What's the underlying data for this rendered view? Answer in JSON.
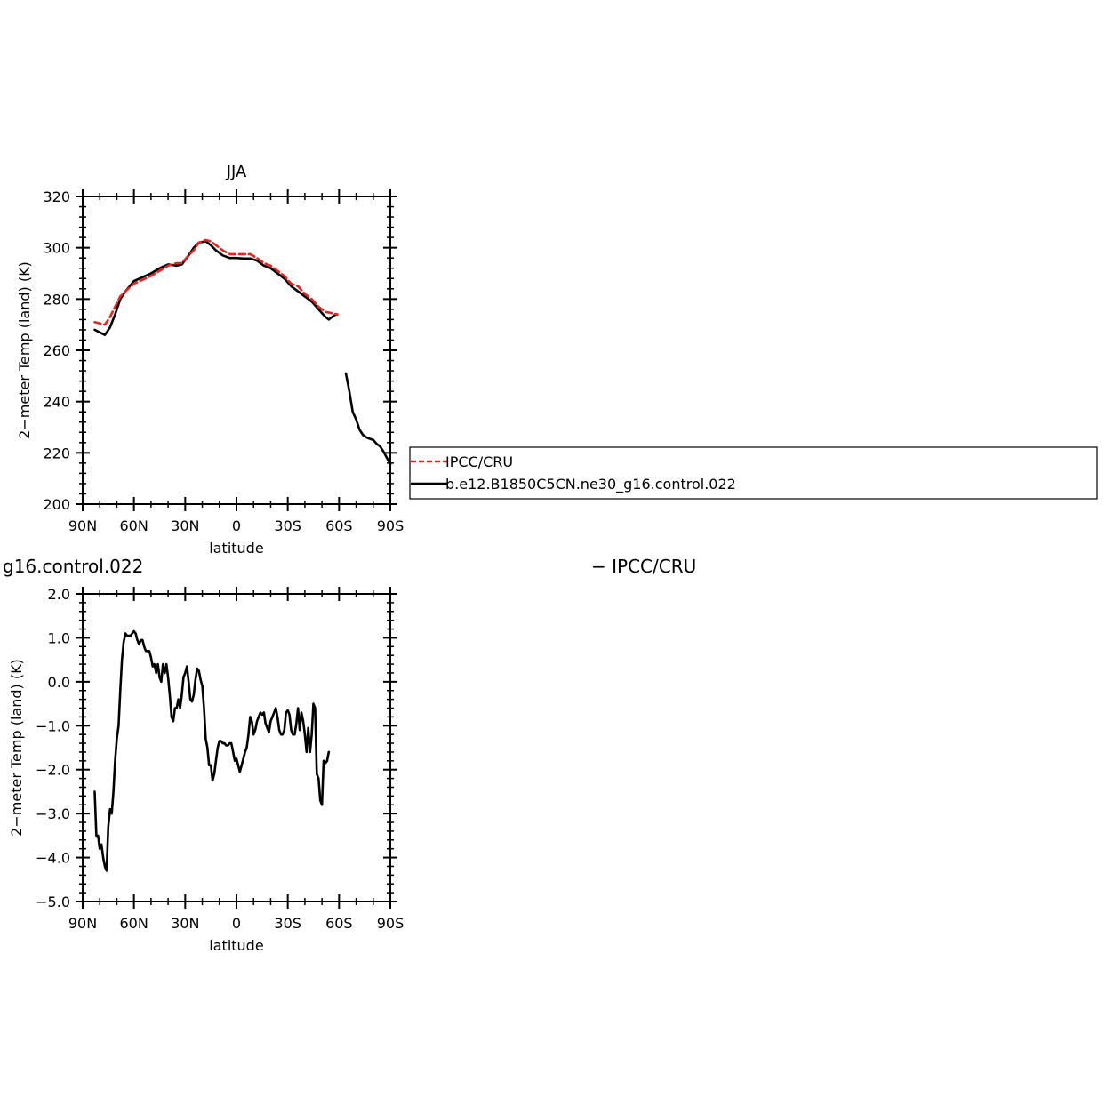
{
  "chart_data": [
    {
      "type": "line",
      "title": "JJA",
      "xlabel": "latitude",
      "ylabel": "2−meter Temp (land) (K)",
      "xlim": [
        90,
        -90
      ],
      "ylim": [
        200,
        320
      ],
      "x_tick_values": [
        90,
        60,
        30,
        0,
        -30,
        -60,
        -90
      ],
      "x_tick_labels": [
        "90N",
        "60N",
        "30N",
        "0",
        "30S",
        "60S",
        "90S"
      ],
      "y_tick_values": [
        200,
        220,
        240,
        260,
        280,
        300,
        320
      ],
      "y_tick_labels": [
        "200",
        "220",
        "240",
        "260",
        "280",
        "300",
        "320"
      ],
      "grid": false,
      "legend": {
        "placement": "right",
        "entries": [
          "IPCC/CRU",
          "b.e12.B1850C5CN.ne30_g16.control.022"
        ]
      },
      "series": [
        {
          "name": "IPCC/CRU",
          "color": "#e8231e",
          "dash": "dashed",
          "segments": [
            [
              [
                83,
                271
              ],
              [
                80,
                270.5
              ],
              [
                77,
                270
              ],
              [
                74,
                273
              ],
              [
                71,
                277
              ],
              [
                68,
                281
              ],
              [
                65,
                283
              ],
              [
                60,
                286
              ],
              [
                55,
                287.5
              ],
              [
                50,
                289
              ],
              [
                45,
                291
              ],
              [
                40,
                293
              ],
              [
                35,
                294
              ],
              [
                32,
                294
              ],
              [
                28,
                297
              ],
              [
                25,
                299
              ],
              [
                22,
                302
              ],
              [
                18,
                303
              ],
              [
                15,
                302.5
              ],
              [
                12,
                301
              ],
              [
                8,
                299
              ],
              [
                4,
                297.5
              ],
              [
                0,
                297.5
              ],
              [
                -4,
                297.5
              ],
              [
                -8,
                297.5
              ],
              [
                -12,
                296
              ],
              [
                -16,
                294
              ],
              [
                -20,
                293
              ],
              [
                -24,
                291
              ],
              [
                -28,
                289
              ],
              [
                -32,
                286
              ],
              [
                -36,
                285
              ],
              [
                -40,
                282
              ],
              [
                -44,
                280
              ],
              [
                -48,
                277
              ],
              [
                -52,
                275
              ],
              [
                -56,
                274.5
              ],
              [
                -59,
                274
              ]
            ]
          ]
        },
        {
          "name": "b.e12.B1850C5CN.ne30_g16.control.022",
          "color": "#000000",
          "dash": "solid",
          "segments": [
            [
              [
                83,
                268
              ],
              [
                80,
                267
              ],
              [
                77,
                266
              ],
              [
                74,
                269
              ],
              [
                71,
                274
              ],
              [
                68,
                280
              ],
              [
                65,
                283
              ],
              [
                60,
                287
              ],
              [
                55,
                288.5
              ],
              [
                50,
                290
              ],
              [
                45,
                292
              ],
              [
                40,
                293.5
              ],
              [
                35,
                293
              ],
              [
                32,
                293.5
              ],
              [
                28,
                297
              ],
              [
                25,
                300
              ],
              [
                22,
                302
              ],
              [
                18,
                302.5
              ],
              [
                15,
                301
              ],
              [
                12,
                299
              ],
              [
                8,
                297
              ],
              [
                4,
                296
              ],
              [
                0,
                296
              ],
              [
                -4,
                295.8
              ],
              [
                -8,
                295.8
              ],
              [
                -12,
                295
              ],
              [
                -16,
                293
              ],
              [
                -20,
                292
              ],
              [
                -24,
                290
              ],
              [
                -28,
                288
              ],
              [
                -32,
                285
              ],
              [
                -36,
                283
              ],
              [
                -40,
                281
              ],
              [
                -44,
                279
              ],
              [
                -48,
                276
              ],
              [
                -52,
                273
              ],
              [
                -54,
                272
              ],
              [
                -56,
                273
              ],
              [
                -58,
                274
              ],
              [
                -59,
                274
              ]
            ],
            [
              [
                -64,
                251
              ],
              [
                -66,
                244
              ],
              [
                -68,
                236
              ],
              [
                -70,
                233
              ],
              [
                -72,
                229
              ],
              [
                -74,
                227
              ],
              [
                -76,
                226
              ],
              [
                -78,
                225.5
              ],
              [
                -80,
                225
              ],
              [
                -82,
                223.5
              ],
              [
                -84,
                222.5
              ],
              [
                -86,
                220.5
              ],
              [
                -88,
                218
              ],
              [
                -90,
                215.5
              ]
            ]
          ]
        }
      ]
    },
    {
      "type": "line",
      "title_fragment": "g16.control.022",
      "title_right_fragment": "− IPCC/CRU",
      "xlabel": "latitude",
      "ylabel": "2−meter Temp (land) (K)",
      "xlim": [
        90,
        -90
      ],
      "ylim": [
        -5.0,
        2.0
      ],
      "x_tick_values": [
        90,
        60,
        30,
        0,
        -30,
        -60,
        -90
      ],
      "x_tick_labels": [
        "90N",
        "60N",
        "30N",
        "0",
        "30S",
        "60S",
        "90S"
      ],
      "y_tick_values": [
        -5,
        -4,
        -3,
        -2,
        -1,
        0,
        1,
        2
      ],
      "y_tick_labels": [
        "−5.0",
        "−4.0",
        "−3.0",
        "−2.0",
        "−1.0",
        "0.0",
        "1.0",
        "2.0"
      ],
      "grid": false,
      "series": [
        {
          "color": "#000000",
          "dash": "solid",
          "segments": [
            [
              [
                83,
                -2.5
              ],
              [
                82,
                -3.5
              ],
              [
                81,
                -3.5
              ],
              [
                80,
                -3.8
              ],
              [
                79,
                -3.7
              ],
              [
                78,
                -4.0
              ],
              [
                77,
                -4.2
              ],
              [
                76,
                -4.3
              ],
              [
                75,
                -3.3
              ],
              [
                74,
                -2.9
              ],
              [
                73,
                -3.0
              ],
              [
                72,
                -2.5
              ],
              [
                71,
                -1.8
              ],
              [
                70,
                -1.3
              ],
              [
                69,
                -1.0
              ],
              [
                68,
                -0.2
              ],
              [
                67,
                0.5
              ],
              [
                66,
                0.9
              ],
              [
                65,
                1.1
              ],
              [
                64,
                1.05
              ],
              [
                63,
                1.05
              ],
              [
                62,
                1.05
              ],
              [
                61,
                1.1
              ],
              [
                60,
                1.15
              ],
              [
                59,
                1.1
              ],
              [
                58,
                0.95
              ],
              [
                57,
                0.85
              ],
              [
                56,
                0.95
              ],
              [
                55,
                0.95
              ],
              [
                54,
                0.8
              ],
              [
                53,
                0.7
              ],
              [
                51,
                0.7
              ],
              [
                50,
                0.55
              ],
              [
                49,
                0.35
              ],
              [
                48,
                0.4
              ],
              [
                47,
                0.2
              ],
              [
                46,
                0.4
              ],
              [
                45,
                0.1
              ],
              [
                44,
                0.0
              ],
              [
                43,
                0.4
              ],
              [
                42,
                0.2
              ],
              [
                41,
                0.4
              ],
              [
                40,
                0.1
              ],
              [
                39,
                -0.3
              ],
              [
                38,
                -0.8
              ],
              [
                37,
                -0.9
              ],
              [
                36,
                -0.6
              ],
              [
                35,
                -0.6
              ],
              [
                34,
                -0.4
              ],
              [
                33,
                -0.6
              ],
              [
                32,
                -0.3
              ],
              [
                31,
                0.1
              ],
              [
                30,
                0.2
              ],
              [
                29,
                0.35
              ],
              [
                28,
                0.0
              ],
              [
                27,
                -0.4
              ],
              [
                26,
                -0.45
              ],
              [
                25,
                -0.3
              ],
              [
                24,
                0.05
              ],
              [
                23,
                0.3
              ],
              [
                22,
                0.25
              ],
              [
                21,
                0.05
              ],
              [
                20,
                -0.1
              ],
              [
                19,
                -0.6
              ],
              [
                18,
                -1.3
              ],
              [
                17,
                -1.5
              ],
              [
                16,
                -1.9
              ],
              [
                15,
                -1.9
              ],
              [
                14,
                -2.25
              ],
              [
                13,
                -2.1
              ],
              [
                12,
                -1.8
              ],
              [
                11,
                -1.5
              ],
              [
                10,
                -1.35
              ],
              [
                9,
                -1.35
              ],
              [
                8,
                -1.4
              ],
              [
                7,
                -1.4
              ],
              [
                6,
                -1.45
              ],
              [
                5,
                -1.45
              ],
              [
                4,
                -1.4
              ],
              [
                3,
                -1.4
              ],
              [
                2,
                -1.6
              ],
              [
                1,
                -1.8
              ],
              [
                0,
                -1.75
              ],
              [
                -1,
                -1.9
              ],
              [
                -2,
                -2.05
              ],
              [
                -3,
                -1.9
              ],
              [
                -4,
                -1.75
              ],
              [
                -5,
                -1.6
              ],
              [
                -6,
                -1.5
              ],
              [
                -7,
                -1.2
              ],
              [
                -8,
                -0.8
              ],
              [
                -9,
                -0.9
              ],
              [
                -10,
                -1.2
              ],
              [
                -11,
                -1.1
              ],
              [
                -12,
                -0.9
              ],
              [
                -13,
                -0.8
              ],
              [
                -14,
                -0.7
              ],
              [
                -15,
                -0.75
              ],
              [
                -16,
                -0.7
              ],
              [
                -17,
                -0.95
              ],
              [
                -18,
                -1.05
              ],
              [
                -19,
                -1.15
              ],
              [
                -20,
                -0.9
              ],
              [
                -21,
                -0.8
              ],
              [
                -22,
                -0.7
              ],
              [
                -23,
                -0.6
              ],
              [
                -24,
                -0.8
              ],
              [
                -25,
                -1.1
              ],
              [
                -26,
                -1.2
              ],
              [
                -27,
                -1.2
              ],
              [
                -28,
                -1.1
              ],
              [
                -29,
                -0.7
              ],
              [
                -30,
                -0.65
              ],
              [
                -31,
                -0.75
              ],
              [
                -32,
                -1.1
              ],
              [
                -33,
                -1.2
              ],
              [
                -34,
                -1.2
              ],
              [
                -35,
                -0.95
              ],
              [
                -36,
                -0.6
              ],
              [
                -37,
                -1.1
              ],
              [
                -38,
                -0.7
              ],
              [
                -39,
                -0.9
              ],
              [
                -40,
                -1.2
              ],
              [
                -41,
                -1.6
              ],
              [
                -42,
                -1.05
              ],
              [
                -43,
                -1.6
              ],
              [
                -44,
                -1.2
              ],
              [
                -45,
                -0.5
              ],
              [
                -46,
                -0.6
              ],
              [
                -47,
                -2.1
              ],
              [
                -48,
                -2.2
              ],
              [
                -49,
                -2.7
              ],
              [
                -50,
                -2.8
              ],
              [
                -51,
                -1.8
              ],
              [
                -52,
                -1.85
              ],
              [
                -53,
                -1.8
              ],
              [
                -54,
                -1.6
              ]
            ]
          ]
        }
      ]
    }
  ]
}
